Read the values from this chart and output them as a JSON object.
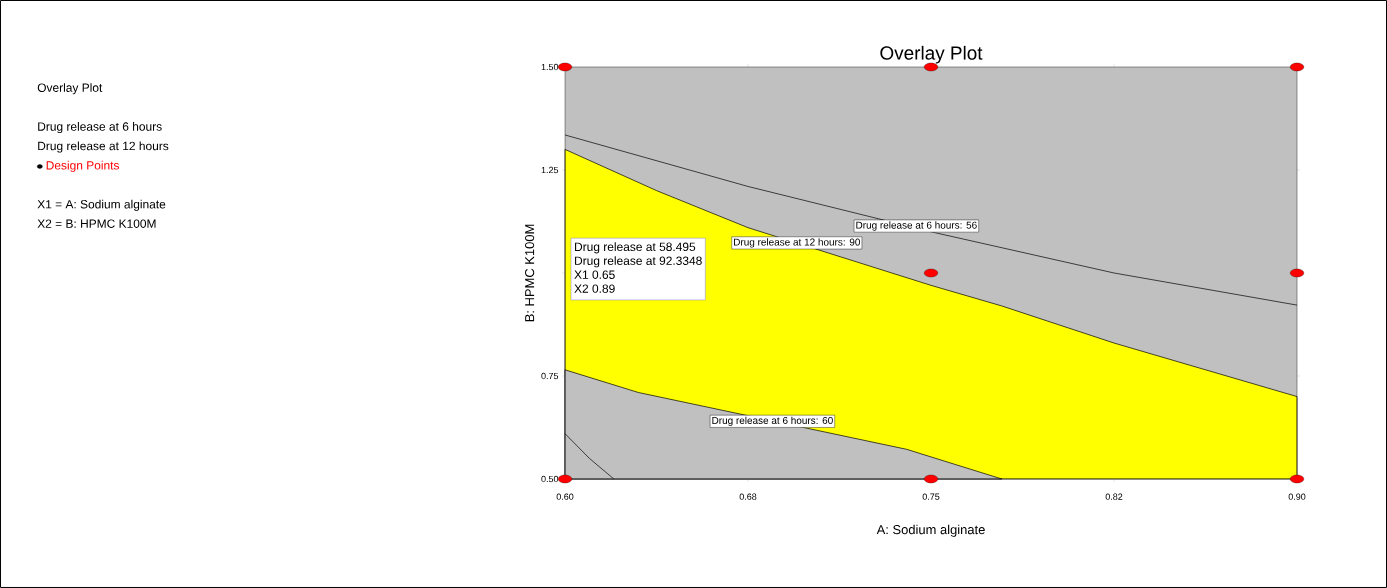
{
  "chart_data": {
    "type": "line",
    "title": "Overlay Plot",
    "xlabel": "A: Sodium alginate",
    "ylabel": "B: HPMC K100M",
    "xlim": [
      0.6,
      0.9
    ],
    "ylim": [
      0.5,
      1.5
    ],
    "xticks": [
      {
        "value": 0.6,
        "label": "0.60"
      },
      {
        "value": 0.675,
        "label": "0.68"
      },
      {
        "value": 0.75,
        "label": "0.75"
      },
      {
        "value": 0.825,
        "label": "0.82"
      },
      {
        "value": 0.9,
        "label": "0.90"
      }
    ],
    "yticks": [
      {
        "value": 0.5,
        "label": "0.50"
      },
      {
        "value": 0.75,
        "label": "0.75"
      },
      {
        "value": 1.0,
        "label": null
      },
      {
        "value": 1.25,
        "label": "1.25"
      },
      {
        "value": 1.5,
        "label": "1.50"
      }
    ],
    "bands": [
      {
        "axis": "x",
        "from": 0.6,
        "to": 0.9,
        "color": "#c0c0c0"
      }
    ],
    "series": [
      {
        "type": "area",
        "color": "#ffff00",
        "x": [
          0.6,
          0.6375,
          0.675,
          0.7125,
          0.75,
          0.779,
          0.825,
          0.9
        ],
        "values": [
          1.3,
          1.2,
          1.11,
          1.04,
          0.97,
          0.92,
          0.83,
          0.7
        ]
      },
      {
        "type": "area",
        "color": "#c0c0c0",
        "x": [
          0.6,
          0.63,
          0.74,
          0.779
        ],
        "values": [
          0.765,
          0.71,
          0.572,
          0.5
        ]
      },
      {
        "color": "#000000",
        "x": [
          0.6,
          0.675,
          0.75,
          0.825,
          0.9
        ],
        "values": [
          1.335,
          1.21,
          1.1,
          1.0,
          0.922
        ]
      },
      {
        "color": "#000000",
        "x": [
          0.6,
          0.61,
          0.62
        ],
        "values": [
          0.61,
          0.55,
          0.5
        ]
      },
      {
        "type": "scatter",
        "name": "Design Points",
        "marker": "circle",
        "color": "#ff0000",
        "x": [
          0.6,
          0.75,
          0.9,
          0.75,
          0.9,
          0.6,
          0.75,
          0.9
        ],
        "values": [
          1.5,
          1.5,
          1.5,
          1.0,
          1.0,
          0.5,
          0.5,
          0.5
        ]
      }
    ],
    "legend": "left",
    "annotations": [
      "Overlay Plot",
      "Drug release at 6 hours",
      "Drug release at 12 hours",
      "X1 = A: Sodium alginate",
      "X2 = B: HPMC K100M",
      {
        "text": "Drug release at 6 hours: 56",
        "x": 0.744,
        "y": 1.114
      },
      {
        "text": "Drug release at 12 hours: 90",
        "x": 0.695,
        "y": 1.073
      },
      {
        "text": "Drug release at 6 hours: 60",
        "x": 0.685,
        "y": 0.64
      },
      "Drug release at 58.495",
      "Drug release at 92.3348",
      "X1 0.65",
      "X2 0.89"
    ]
  }
}
